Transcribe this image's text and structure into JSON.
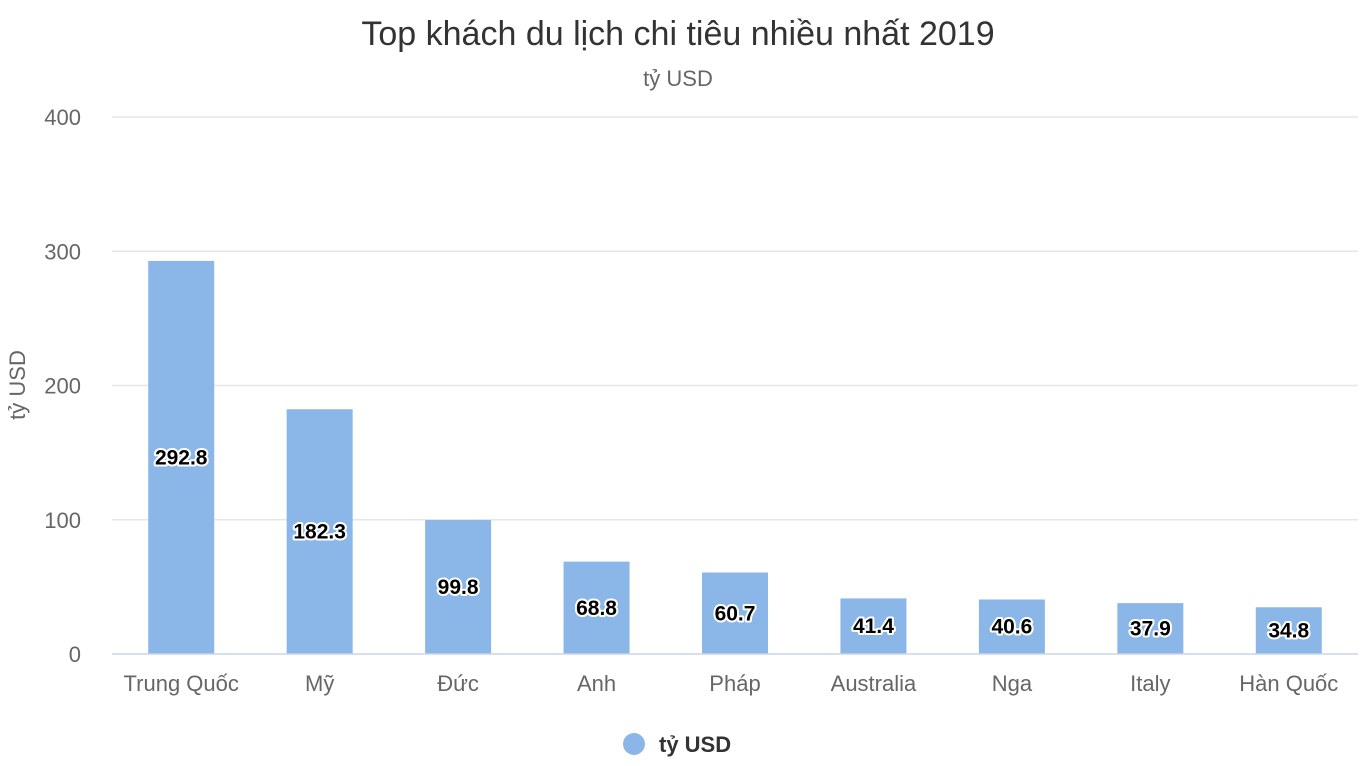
{
  "chart_data": {
    "type": "bar",
    "title": "Top khách du lịch chi tiêu nhiều nhất 2019",
    "subtitle": "tỷ USD",
    "ylabel": "tỷ USD",
    "xlabel": "",
    "categories": [
      "Trung Quốc",
      "Mỹ",
      "Đức",
      "Anh",
      "Pháp",
      "Australia",
      "Nga",
      "Italy",
      "Hàn Quốc"
    ],
    "series": [
      {
        "name": "tỷ USD",
        "values": [
          292.8,
          182.3,
          99.8,
          68.8,
          60.7,
          41.4,
          40.6,
          37.9,
          34.8
        ],
        "color": "#8bb6e8"
      }
    ],
    "ylim": [
      0,
      400
    ],
    "yticks": [
      0,
      100,
      200,
      300,
      400
    ],
    "grid": true,
    "legend": "bottom-center"
  }
}
